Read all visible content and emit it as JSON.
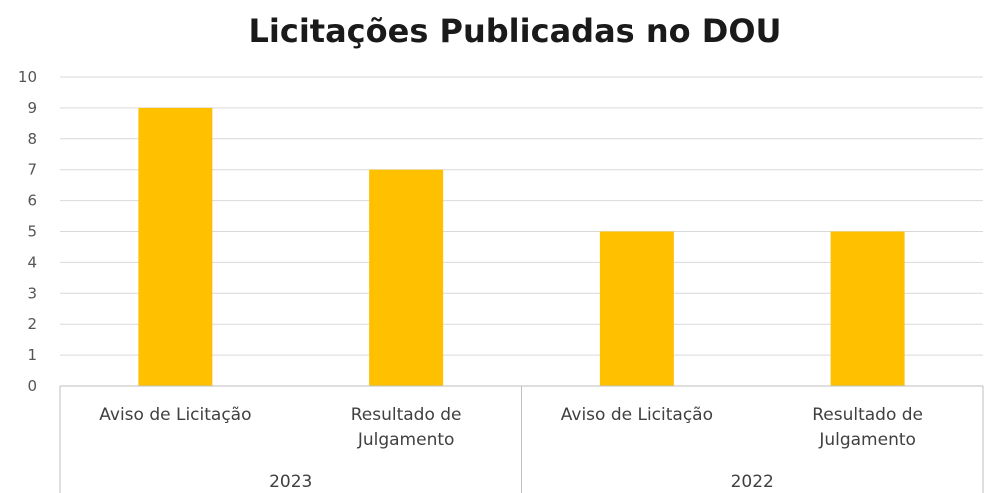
{
  "chart_data": {
    "type": "bar",
    "title": "Licitações Publicadas no DOU",
    "xlabel": "",
    "ylabel": "",
    "ylim": [
      0,
      10
    ],
    "yticks": [
      0,
      1,
      2,
      3,
      4,
      5,
      6,
      7,
      8,
      9,
      10
    ],
    "grid": true,
    "legend": "none",
    "bar_color": "#FFC000",
    "groups": [
      {
        "label": "2023",
        "categories": [
          {
            "label": [
              "Aviso de Licitação"
            ],
            "value": 9
          },
          {
            "label": [
              "Resultado de",
              "Julgamento"
            ],
            "value": 7
          }
        ]
      },
      {
        "label": "2022",
        "categories": [
          {
            "label": [
              "Aviso de Licitação"
            ],
            "value": 5
          },
          {
            "label": [
              "Resultado de",
              "Julgamento"
            ],
            "value": 5
          }
        ]
      }
    ]
  }
}
